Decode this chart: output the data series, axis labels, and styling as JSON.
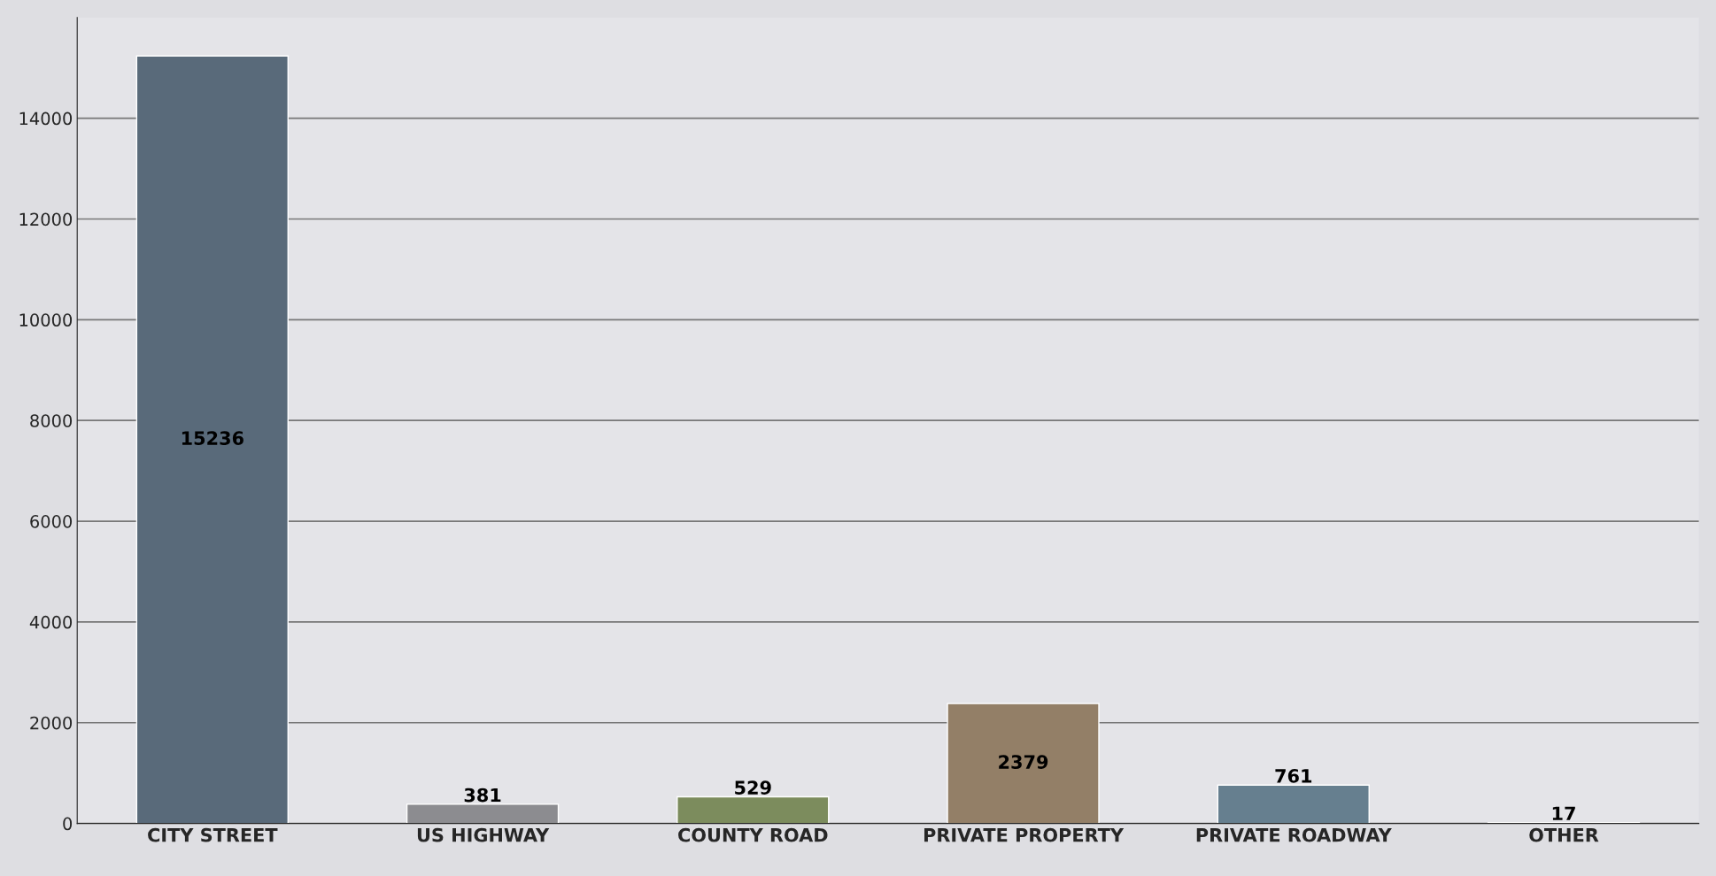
{
  "chart_data": {
    "type": "bar",
    "categories": [
      "CITY STREET",
      "US HIGHWAY",
      "COUNTY ROAD",
      "PRIVATE PROPERTY",
      "PRIVATE ROADWAY",
      "OTHER"
    ],
    "values": [
      15236,
      381,
      529,
      2379,
      761,
      17
    ],
    "colors": [
      "#536a80",
      "#8c8c90",
      "#7f9455",
      "#9a8060",
      "#5f8096",
      "#5a4a4e"
    ],
    "ylim": [
      0,
      16000
    ],
    "yticks": [
      0,
      2000,
      4000,
      6000,
      8000,
      10000,
      12000,
      14000
    ],
    "grid": "y",
    "data_labels": true
  }
}
